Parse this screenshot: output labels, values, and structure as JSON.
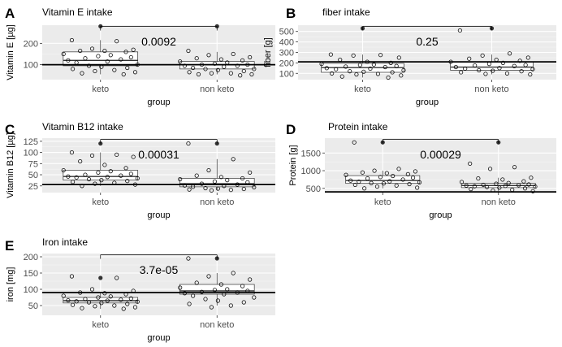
{
  "chart_data": [
    {
      "type": "box",
      "panel_label": "A",
      "title": "Vitamin E intake",
      "xlabel": "group",
      "ylabel": "Vitamin E [µg]",
      "categories": [
        "keto",
        "non keto"
      ],
      "yticks": [
        100,
        200
      ],
      "ylim": [
        30,
        285
      ],
      "reference_line": 100,
      "p_value": "0.0092",
      "boxes": [
        {
          "group": "keto",
          "q1": 95,
          "median": 120,
          "q3": 160,
          "whisker_low": 55,
          "whisker_high": 215
        },
        {
          "group": "non keto",
          "q1": 80,
          "median": 100,
          "q3": 115,
          "whisker_low": 55,
          "whisker_high": 160
        }
      ],
      "outliers": [
        {
          "group": "keto",
          "y": 280
        },
        {
          "group": "non keto",
          "y": 280
        }
      ],
      "points": [
        {
          "group": "keto",
          "values": [
            215,
            210,
            175,
            170,
            165,
            165,
            160,
            150,
            145,
            140,
            135,
            130,
            125,
            120,
            115,
            110,
            100,
            95,
            90,
            85,
            80,
            75,
            70,
            65,
            60,
            55
          ]
        },
        {
          "group": "non keto",
          "values": [
            165,
            150,
            145,
            135,
            130,
            125,
            120,
            115,
            110,
            105,
            100,
            100,
            95,
            95,
            90,
            85,
            80,
            80,
            75,
            70,
            65,
            60,
            60,
            55,
            55,
            50
          ]
        }
      ]
    },
    {
      "type": "box",
      "panel_label": "B",
      "title": "fiber intake",
      "xlabel": "group",
      "ylabel": "fiber [g]",
      "categories": [
        "keto",
        "non keto"
      ],
      "yticks": [
        100,
        200,
        300,
        400,
        500
      ],
      "ylim": [
        40,
        560
      ],
      "reference_line": 210,
      "p_value": "0.25",
      "boxes": [
        {
          "group": "keto",
          "q1": 110,
          "median": 155,
          "q3": 195,
          "whisker_low": 60,
          "whisker_high": 280
        },
        {
          "group": "non keto",
          "q1": 130,
          "median": 160,
          "q3": 210,
          "whisker_low": 90,
          "whisker_high": 280
        }
      ],
      "outliers": [
        {
          "group": "keto",
          "y": 530
        },
        {
          "group": "non keto",
          "y": 530
        }
      ],
      "points": [
        {
          "group": "keto",
          "values": [
            280,
            275,
            270,
            250,
            230,
            210,
            200,
            190,
            185,
            180,
            170,
            165,
            160,
            150,
            145,
            140,
            130,
            120,
            115,
            110,
            100,
            95,
            90,
            80,
            70,
            60
          ]
        },
        {
          "group": "non keto",
          "values": [
            510,
            290,
            270,
            250,
            240,
            230,
            220,
            210,
            200,
            190,
            180,
            175,
            170,
            160,
            150,
            145,
            140,
            130,
            125,
            120,
            110,
            100,
            95,
            90
          ]
        }
      ]
    },
    {
      "type": "box",
      "panel_label": "C",
      "title": "Vitamin B12 intake",
      "xlabel": "group",
      "ylabel": "Vitamin B12 [µg]",
      "categories": [
        "keto",
        "non keto"
      ],
      "yticks": [
        25,
        50,
        75,
        100,
        125
      ],
      "ylim": [
        10,
        132
      ],
      "reference_line": 28,
      "p_value": "0.00031",
      "boxes": [
        {
          "group": "keto",
          "q1": 38,
          "median": 46,
          "q3": 60,
          "whisker_low": 25,
          "whisker_high": 100
        },
        {
          "group": "non keto",
          "q1": 23,
          "median": 30,
          "q3": 42,
          "whisker_low": 15,
          "whisker_high": 85
        }
      ],
      "outliers": [
        {
          "group": "keto",
          "y": 120
        },
        {
          "group": "non keto",
          "y": 120
        }
      ],
      "points": [
        {
          "group": "keto",
          "values": [
            100,
            95,
            93,
            90,
            80,
            72,
            65,
            60,
            58,
            55,
            52,
            50,
            48,
            46,
            45,
            44,
            42,
            40,
            38,
            36,
            34,
            32,
            30,
            28,
            25
          ]
        },
        {
          "group": "non keto",
          "values": [
            120,
            85,
            60,
            55,
            48,
            45,
            42,
            40,
            38,
            35,
            33,
            30,
            28,
            26,
            25,
            23,
            22,
            20,
            19,
            18,
            17,
            16,
            15
          ]
        }
      ]
    },
    {
      "type": "box",
      "panel_label": "D",
      "title": "Protein intake",
      "xlabel": "group",
      "ylabel": "Protein [g]",
      "categories": [
        "keto",
        "non keto"
      ],
      "yticks": [
        500,
        1000,
        1500
      ],
      "ylim": [
        380,
        1920
      ],
      "reference_line": 400,
      "p_value": "0.00029",
      "boxes": [
        {
          "group": "keto",
          "q1": 640,
          "median": 720,
          "q3": 860,
          "whisker_low": 500,
          "whisker_high": 1000
        },
        {
          "group": "non keto",
          "q1": 520,
          "median": 580,
          "q3": 640,
          "whisker_low": 420,
          "whisker_high": 800
        }
      ],
      "outliers": [
        {
          "group": "keto",
          "y": 1800
        },
        {
          "group": "non keto",
          "y": 1800
        }
      ],
      "points": [
        {
          "group": "keto",
          "values": [
            1800,
            1050,
            1000,
            980,
            950,
            930,
            900,
            880,
            850,
            820,
            800,
            780,
            750,
            720,
            700,
            690,
            670,
            650,
            640,
            620,
            600,
            580,
            550,
            520,
            500
          ]
        },
        {
          "group": "non keto",
          "values": [
            1200,
            1100,
            1050,
            800,
            780,
            750,
            700,
            680,
            650,
            630,
            610,
            600,
            590,
            580,
            570,
            560,
            550,
            540,
            520,
            500,
            480,
            460,
            440,
            420
          ]
        }
      ]
    },
    {
      "type": "box",
      "panel_label": "E",
      "title": "Iron intake",
      "xlabel": "group",
      "ylabel": "iron [mg]",
      "categories": [
        "keto",
        "non keto"
      ],
      "yticks": [
        50,
        100,
        150,
        200
      ],
      "ylim": [
        20,
        210
      ],
      "reference_line": 90,
      "p_value": "3.7e-05",
      "boxes": [
        {
          "group": "keto",
          "q1": 58,
          "median": 65,
          "q3": 75,
          "whisker_low": 40,
          "whisker_high": 90
        },
        {
          "group": "non keto",
          "q1": 85,
          "median": 95,
          "q3": 115,
          "whisker_low": 50,
          "whisker_high": 150
        }
      ],
      "outliers": [
        {
          "group": "keto",
          "y": 135
        },
        {
          "group": "non keto",
          "y": 195
        }
      ],
      "points": [
        {
          "group": "keto",
          "values": [
            140,
            135,
            100,
            95,
            90,
            88,
            85,
            80,
            78,
            75,
            72,
            70,
            68,
            66,
            65,
            63,
            62,
            60,
            58,
            55,
            52,
            50,
            48,
            45,
            42,
            40
          ]
        },
        {
          "group": "non keto",
          "values": [
            195,
            150,
            140,
            130,
            120,
            115,
            110,
            105,
            100,
            98,
            95,
            92,
            90,
            88,
            85,
            80,
            75,
            70,
            65,
            60,
            55,
            50,
            45
          ]
        }
      ]
    }
  ]
}
